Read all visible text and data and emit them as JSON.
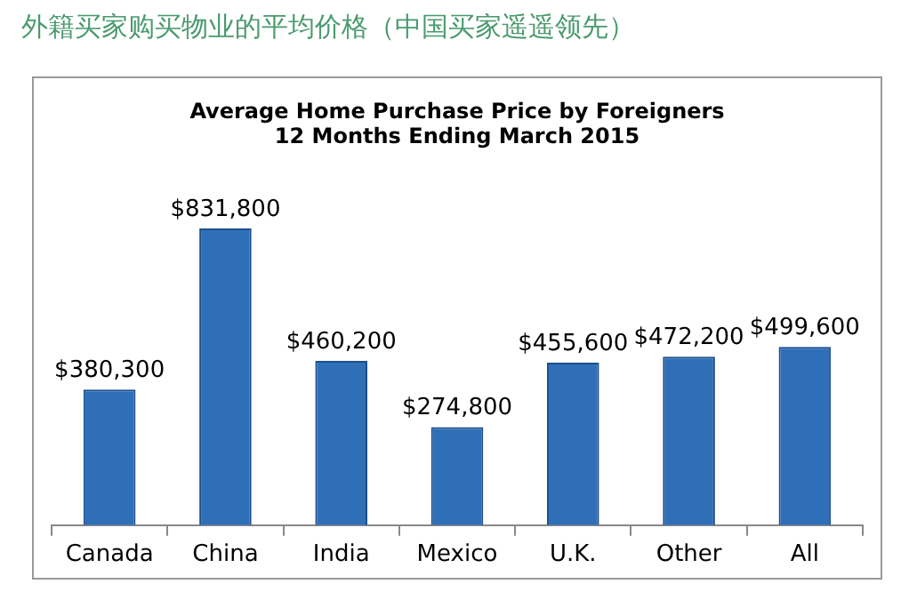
{
  "chart_data": {
    "type": "bar",
    "title": "外籍买家购买物业的平均价格（中国买家遥遥领先）",
    "subtitle": "Average Home Purchase Price by Foreigners\n12 Months Ending March 2015",
    "categories": [
      "Canada",
      "China",
      "India",
      "Mexico",
      "U.K.",
      "Other",
      "All"
    ],
    "values": [
      380300,
      831800,
      460200,
      274800,
      455600,
      472200,
      499600
    ],
    "value_labels": [
      "$380,300",
      "$831,800",
      "$460,200",
      "$274,800",
      "$455,600",
      "$472,200",
      "$499,600"
    ],
    "color": "#2f6fb8",
    "grid": false,
    "legend": false
  }
}
